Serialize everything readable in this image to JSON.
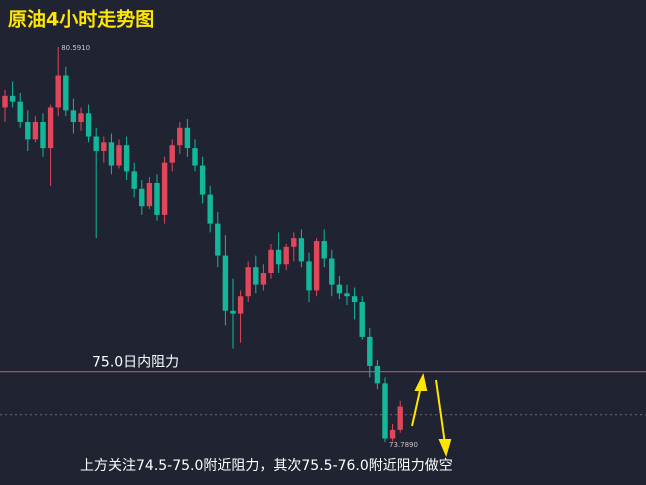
{
  "chart_data": {
    "type": "candlestick",
    "title": "原油4小时走势图",
    "ylim": [
      73.05,
      81.4
    ],
    "up_color": "#e0475b",
    "down_color": "#13b89a",
    "open": [
      79.55,
      79.75,
      79.65,
      79.3,
      79.0,
      79.3,
      78.85,
      79.55,
      80.1,
      79.5,
      79.3,
      79.45,
      79.05,
      78.8,
      78.95,
      78.55,
      78.9,
      78.45,
      78.15,
      77.85,
      78.25,
      77.7,
      78.6,
      78.9,
      79.2,
      78.85,
      78.55,
      78.05,
      77.55,
      77.0,
      76.05,
      76.0,
      76.3,
      76.8,
      76.5,
      76.7,
      77.1,
      76.85,
      77.15,
      77.3,
      76.9,
      76.4,
      77.25,
      76.95,
      76.5,
      76.35,
      76.3,
      76.2,
      75.6,
      75.1,
      74.8,
      73.85,
      74.0
    ],
    "high": [
      79.85,
      80.0,
      79.8,
      79.5,
      79.4,
      79.45,
      79.6,
      80.591,
      80.25,
      79.7,
      79.55,
      79.6,
      79.2,
      79.05,
      79.1,
      79.0,
      79.05,
      78.6,
      78.3,
      78.35,
      78.4,
      78.7,
      79.0,
      79.3,
      79.35,
      79.0,
      78.7,
      78.2,
      77.75,
      77.35,
      76.6,
      76.4,
      76.9,
      77.0,
      76.85,
      77.2,
      77.4,
      77.2,
      77.4,
      77.45,
      77.05,
      77.3,
      77.45,
      77.1,
      76.65,
      76.5,
      76.45,
      76.3,
      75.75,
      75.2,
      74.9,
      74.1,
      74.5
    ],
    "low": [
      79.3,
      79.55,
      79.2,
      78.8,
      78.95,
      78.7,
      78.2,
      79.4,
      79.4,
      79.1,
      79.15,
      78.95,
      77.3,
      78.6,
      78.4,
      78.5,
      78.3,
      78.0,
      77.7,
      77.8,
      77.6,
      77.55,
      78.45,
      78.75,
      78.7,
      78.45,
      77.9,
      77.4,
      76.8,
      75.8,
      75.4,
      75.5,
      76.2,
      76.35,
      76.4,
      76.6,
      76.7,
      76.75,
      76.9,
      76.8,
      76.2,
      76.3,
      76.8,
      76.3,
      76.25,
      76.15,
      75.9,
      75.55,
      74.9,
      74.7,
      73.789,
      73.8,
      73.95
    ],
    "close": [
      79.75,
      79.65,
      79.3,
      79.0,
      79.3,
      78.85,
      79.55,
      80.1,
      79.5,
      79.3,
      79.45,
      79.05,
      78.8,
      78.95,
      78.55,
      78.9,
      78.45,
      78.15,
      77.85,
      78.25,
      77.7,
      78.6,
      78.9,
      79.2,
      78.85,
      78.55,
      78.05,
      77.55,
      77.0,
      76.05,
      76.0,
      76.3,
      76.8,
      76.5,
      76.7,
      77.1,
      76.85,
      77.15,
      77.3,
      76.9,
      76.4,
      77.25,
      76.95,
      76.5,
      76.35,
      76.3,
      76.2,
      75.6,
      75.1,
      74.8,
      73.85,
      74.0,
      74.4
    ],
    "high_label": {
      "value": 80.591,
      "label": "80.5910"
    },
    "low_label": {
      "value": 73.789,
      "label": "73.7890"
    },
    "resistance_line": {
      "value": 75.0,
      "label": "75.0日内阻力"
    },
    "price_line": 74.26,
    "note": "上方关注74.5-75.0附近阻力，其次75.5-76.0附近阻力做空"
  }
}
